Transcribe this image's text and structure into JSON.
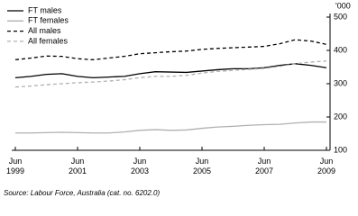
{
  "chart_data": {
    "type": "line",
    "y_unit": "'000",
    "source": "Source: Labour Force, Australia (cat. no. 6202.0)",
    "categories": [
      "Jun 1999",
      null,
      null,
      null,
      "Jun 2001",
      null,
      null,
      null,
      "Jun 2003",
      null,
      null,
      null,
      "Jun 2005",
      null,
      null,
      null,
      "Jun 2007",
      null,
      null,
      null,
      "Jun 2009"
    ],
    "series": [
      {
        "name": "FT males",
        "color": "#000000",
        "dashed": false,
        "values": [
          318,
          322,
          328,
          330,
          322,
          318,
          320,
          322,
          330,
          336,
          335,
          334,
          338,
          342,
          345,
          345,
          348,
          355,
          360,
          355,
          348
        ]
      },
      {
        "name": "FT females",
        "color": "#b0b0b0",
        "dashed": false,
        "values": [
          152,
          152,
          153,
          154,
          153,
          152,
          152,
          155,
          160,
          162,
          160,
          161,
          166,
          170,
          172,
          175,
          177,
          178,
          182,
          185,
          185
        ]
      },
      {
        "name": "All males",
        "color": "#000000",
        "dashed": true,
        "values": [
          372,
          377,
          383,
          382,
          375,
          372,
          377,
          382,
          390,
          393,
          396,
          398,
          403,
          406,
          408,
          410,
          412,
          420,
          432,
          428,
          418
        ]
      },
      {
        "name": "All females",
        "color": "#b0b0b0",
        "dashed": true,
        "values": [
          290,
          293,
          297,
          300,
          303,
          305,
          308,
          312,
          318,
          322,
          322,
          325,
          332,
          337,
          340,
          343,
          346,
          352,
          360,
          365,
          368
        ]
      }
    ],
    "ylim": [
      100,
      500
    ],
    "yticks": [
      100,
      200,
      300,
      400,
      500
    ],
    "legend": "top-left"
  }
}
